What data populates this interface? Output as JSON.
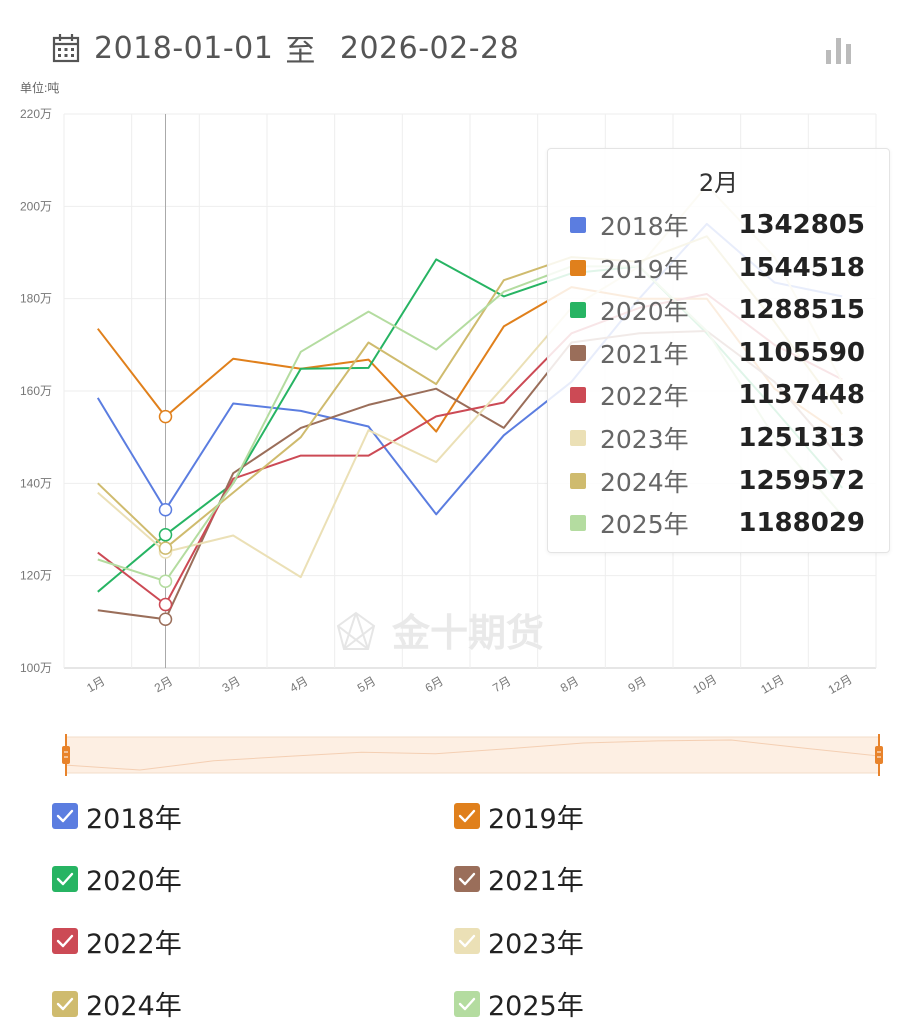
{
  "header": {
    "start_date": "2018-01-01",
    "separator": "至",
    "end_date": "2026-02-28",
    "calendar_icon": "calendar-icon",
    "chart_toggle_icon": "bar-chart-icon"
  },
  "watermark": "金十期货",
  "tooltip": {
    "title": "2月",
    "rows": [
      {
        "name": "2018年",
        "value": "1342805",
        "color": "#5b7de0"
      },
      {
        "name": "2019年",
        "value": "1544518",
        "color": "#e0801c"
      },
      {
        "name": "2020年",
        "value": "1288515",
        "color": "#27b463"
      },
      {
        "name": "2021年",
        "value": "1105590",
        "color": "#9a6e5a"
      },
      {
        "name": "2022年",
        "value": "1137448",
        "color": "#cc4a55"
      },
      {
        "name": "2023年",
        "value": "1251313",
        "color": "#ebe0b6"
      },
      {
        "name": "2024年",
        "value": "1259572",
        "color": "#cfbb6e"
      },
      {
        "name": "2025年",
        "value": "1188029",
        "color": "#b4dca0"
      }
    ]
  },
  "chart_data": {
    "type": "line",
    "unit_label": "单位:吨",
    "categories": [
      "1月",
      "2月",
      "3月",
      "4月",
      "5月",
      "6月",
      "7月",
      "8月",
      "9月",
      "10月",
      "11月",
      "12月"
    ],
    "y_ticks": [
      "100万",
      "120万",
      "140万",
      "160万",
      "180万",
      "200万",
      "220万"
    ],
    "ylim": [
      1000000,
      2200000
    ],
    "grid": true,
    "highlight_category": "2月",
    "series": [
      {
        "name": "2018年",
        "color": "#5b7de0",
        "values": [
          1585000,
          1342805,
          1573000,
          1557000,
          1523000,
          1333000,
          1504000,
          1620000,
          1800000,
          1962000,
          1835000,
          1805000
        ]
      },
      {
        "name": "2019年",
        "color": "#e0801c",
        "values": [
          1735000,
          1544518,
          1670000,
          1648000,
          1668000,
          1512000,
          1740000,
          1825000,
          1800000,
          1800000,
          1605000,
          1505000
        ]
      },
      {
        "name": "2020年",
        "color": "#27b463",
        "values": [
          1165000,
          1288515,
          1400000,
          1648000,
          1650000,
          1885000,
          1805000,
          1855000,
          1870000,
          1725000,
          1560000,
          1390000
        ]
      },
      {
        "name": "2021年",
        "color": "#9a6e5a",
        "values": [
          1125000,
          1105590,
          1422000,
          1520000,
          1570000,
          1605000,
          1520000,
          1705000,
          1725000,
          1730000,
          1620000,
          1450000
        ]
      },
      {
        "name": "2022年",
        "color": "#cc4a55",
        "values": [
          1250000,
          1137448,
          1410000,
          1460000,
          1460000,
          1545000,
          1575000,
          1725000,
          1780000,
          1810000,
          1700000,
          1625000
        ]
      },
      {
        "name": "2023年",
        "color": "#ebe0b6",
        "values": [
          1380000,
          1251313,
          1287000,
          1197000,
          1515000,
          1446000,
          1610000,
          1780000,
          1870000,
          2045000,
          1890000,
          1620000
        ]
      },
      {
        "name": "2024年",
        "color": "#cfbb6e",
        "values": [
          1400000,
          1259572,
          1380000,
          1500000,
          1705000,
          1615000,
          1840000,
          1890000,
          1880000,
          1935000,
          1750000,
          1550000
        ]
      },
      {
        "name": "2025年",
        "color": "#b4dca0",
        "values": [
          1235000,
          1188029,
          1400000,
          1685000,
          1772000,
          1690000,
          1815000,
          1870000,
          1870000,
          1730000,
          1500000,
          1330000
        ]
      }
    ]
  },
  "data_zoom": {
    "range_start_percent": 0,
    "range_end_percent": 100
  },
  "legend": [
    {
      "name": "2018年",
      "color": "#5b7de0",
      "checked": true
    },
    {
      "name": "2019年",
      "color": "#e0801c",
      "checked": true
    },
    {
      "name": "2020年",
      "color": "#27b463",
      "checked": true
    },
    {
      "name": "2021年",
      "color": "#9a6e5a",
      "checked": true
    },
    {
      "name": "2022年",
      "color": "#cc4a55",
      "checked": true
    },
    {
      "name": "2023年",
      "color": "#ebe0b6",
      "checked": true
    },
    {
      "name": "2024年",
      "color": "#cfbb6e",
      "checked": true
    },
    {
      "name": "2025年",
      "color": "#b4dca0",
      "checked": true
    }
  ]
}
